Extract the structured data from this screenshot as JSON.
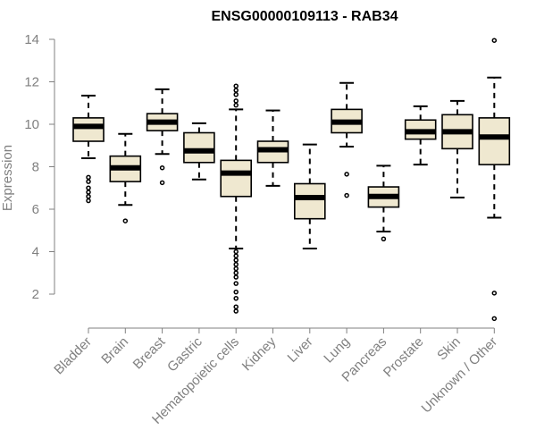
{
  "chart_data": {
    "type": "box",
    "title": "ENSG00000109113 - RAB34",
    "ylabel": "Expression",
    "xlabel": "",
    "ylim": [
      1,
      14.2
    ],
    "yticks": [
      2,
      4,
      6,
      8,
      10,
      12,
      14
    ],
    "grid": false,
    "colors": {
      "box_fill": "#efe8d0",
      "median": "#000000",
      "stroke": "#000000",
      "axis": "#808080"
    },
    "categories": [
      "Bladder",
      "Brain",
      "Breast",
      "Gastric",
      "Hematopoietic cells",
      "Kidney",
      "Liver",
      "Lung",
      "Pancreas",
      "Prostate",
      "Skin",
      "Unknown / Other"
    ],
    "boxes": [
      {
        "category": "Bladder",
        "min": 8.4,
        "q1": 9.2,
        "median": 9.9,
        "q3": 10.3,
        "max": 11.35,
        "outliers": [
          6.4,
          6.6,
          6.8,
          7.0,
          7.3,
          7.5
        ]
      },
      {
        "category": "Brain",
        "min": 6.2,
        "q1": 7.3,
        "median": 7.95,
        "q3": 8.5,
        "max": 9.55,
        "outliers": [
          5.45
        ]
      },
      {
        "category": "Breast",
        "min": 8.6,
        "q1": 9.7,
        "median": 10.1,
        "q3": 10.5,
        "max": 11.65,
        "outliers": [
          7.25,
          7.95
        ]
      },
      {
        "category": "Gastric",
        "min": 7.4,
        "q1": 8.2,
        "median": 8.75,
        "q3": 9.6,
        "max": 10.05,
        "outliers": []
      },
      {
        "category": "Hematopoietic cells",
        "min": 4.15,
        "q1": 6.6,
        "median": 7.7,
        "q3": 8.3,
        "max": 10.7,
        "outliers": [
          1.2,
          1.4,
          1.8,
          2.1,
          2.5,
          2.8,
          3.0,
          3.2,
          3.4,
          3.6,
          3.8,
          4.0,
          10.9,
          11.1,
          11.4,
          11.6,
          11.8
        ]
      },
      {
        "category": "Kidney",
        "min": 7.1,
        "q1": 8.2,
        "median": 8.8,
        "q3": 9.2,
        "max": 10.65,
        "outliers": []
      },
      {
        "category": "Liver",
        "min": 4.15,
        "q1": 5.55,
        "median": 6.55,
        "q3": 7.2,
        "max": 9.05,
        "outliers": []
      },
      {
        "category": "Lung",
        "min": 8.95,
        "q1": 9.6,
        "median": 10.1,
        "q3": 10.7,
        "max": 11.95,
        "outliers": [
          6.65,
          7.65
        ]
      },
      {
        "category": "Pancreas",
        "min": 4.95,
        "q1": 6.1,
        "median": 6.6,
        "q3": 7.05,
        "max": 8.05,
        "outliers": [
          4.6
        ]
      },
      {
        "category": "Prostate",
        "min": 8.1,
        "q1": 9.3,
        "median": 9.65,
        "q3": 10.2,
        "max": 10.85,
        "outliers": []
      },
      {
        "category": "Skin",
        "min": 6.55,
        "q1": 8.85,
        "median": 9.65,
        "q3": 10.45,
        "max": 11.1,
        "outliers": []
      },
      {
        "category": "Unknown / Other",
        "min": 5.6,
        "q1": 8.1,
        "median": 9.4,
        "q3": 10.3,
        "max": 12.2,
        "outliers": [
          0.85,
          2.05,
          13.95
        ]
      }
    ]
  }
}
